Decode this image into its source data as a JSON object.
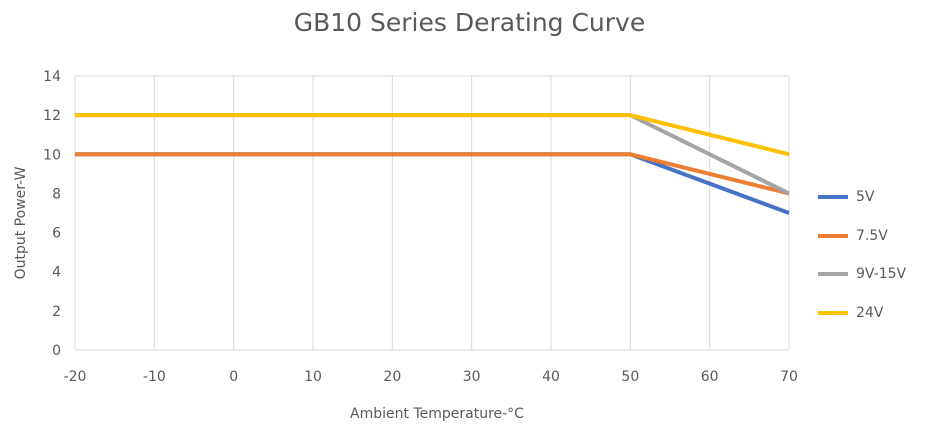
{
  "chart_data": {
    "type": "line",
    "title": "GB10 Series Derating Curve",
    "xlabel": "Ambient Temperature-°C",
    "ylabel": "Output Power-W",
    "xlim": [
      -20,
      70
    ],
    "ylim": [
      0,
      14
    ],
    "xticks": [
      "-20",
      "-10",
      "0",
      "10",
      "20",
      "30",
      "40",
      "50",
      "60",
      "70"
    ],
    "yticks": [
      "0",
      "2",
      "4",
      "6",
      "8",
      "10",
      "12",
      "14"
    ],
    "grid": "vertical",
    "legend_position": "right",
    "series": [
      {
        "name": "5V",
        "color": "#4472C4",
        "x": [
          -20,
          50,
          70
        ],
        "y": [
          10,
          10,
          7
        ]
      },
      {
        "name": "7.5V",
        "color": "#ED7D31",
        "x": [
          -20,
          50,
          70
        ],
        "y": [
          10,
          10,
          8
        ]
      },
      {
        "name": "9V-15V",
        "color": "#A5A5A5",
        "x": [
          -20,
          50,
          70
        ],
        "y": [
          12,
          12,
          8
        ]
      },
      {
        "name": "24V",
        "color": "#FFC000",
        "x": [
          -20,
          50,
          70
        ],
        "y": [
          12,
          12,
          10
        ]
      }
    ]
  }
}
